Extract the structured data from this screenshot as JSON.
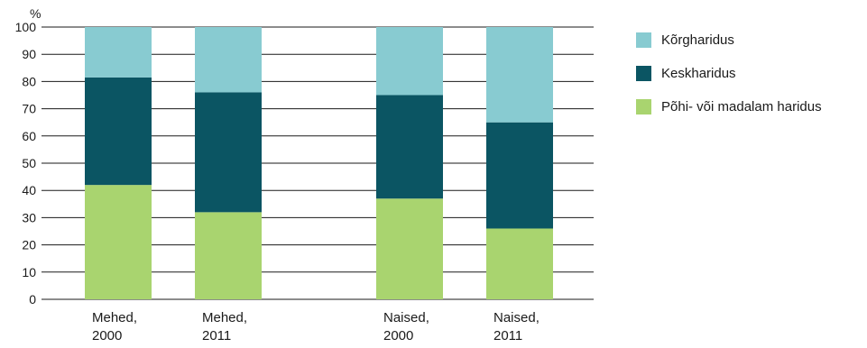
{
  "chart_data": {
    "type": "bar",
    "stacked": true,
    "unit_label": "%",
    "ylim": [
      0,
      100
    ],
    "yticks": [
      0,
      10,
      20,
      30,
      40,
      50,
      60,
      70,
      80,
      90,
      100
    ],
    "categories": [
      [
        "Mehed,",
        "2000"
      ],
      [
        "Mehed,",
        "2011"
      ],
      [
        "Naised,",
        "2000"
      ],
      [
        "Naised,",
        "2011"
      ]
    ],
    "series": [
      {
        "name": "Põhi- või madalam haridus",
        "color": "#a9d46f",
        "values": [
          42,
          32,
          37,
          26
        ]
      },
      {
        "name": "Keskharidus",
        "color": "#0b5563",
        "values": [
          39.5,
          44,
          38,
          39
        ]
      },
      {
        "name": "Kõrgharidus",
        "color": "#88cbd1",
        "values": [
          18.5,
          24,
          25,
          35
        ]
      }
    ],
    "legend": {
      "position": "right",
      "items": [
        {
          "label": "Kõrgharidus",
          "color": "#88cbd1"
        },
        {
          "label": "Keskharidus",
          "color": "#0b5563"
        },
        {
          "label": "Põhi- või madalam haridus",
          "color": "#a9d46f"
        }
      ]
    },
    "grid": true
  }
}
